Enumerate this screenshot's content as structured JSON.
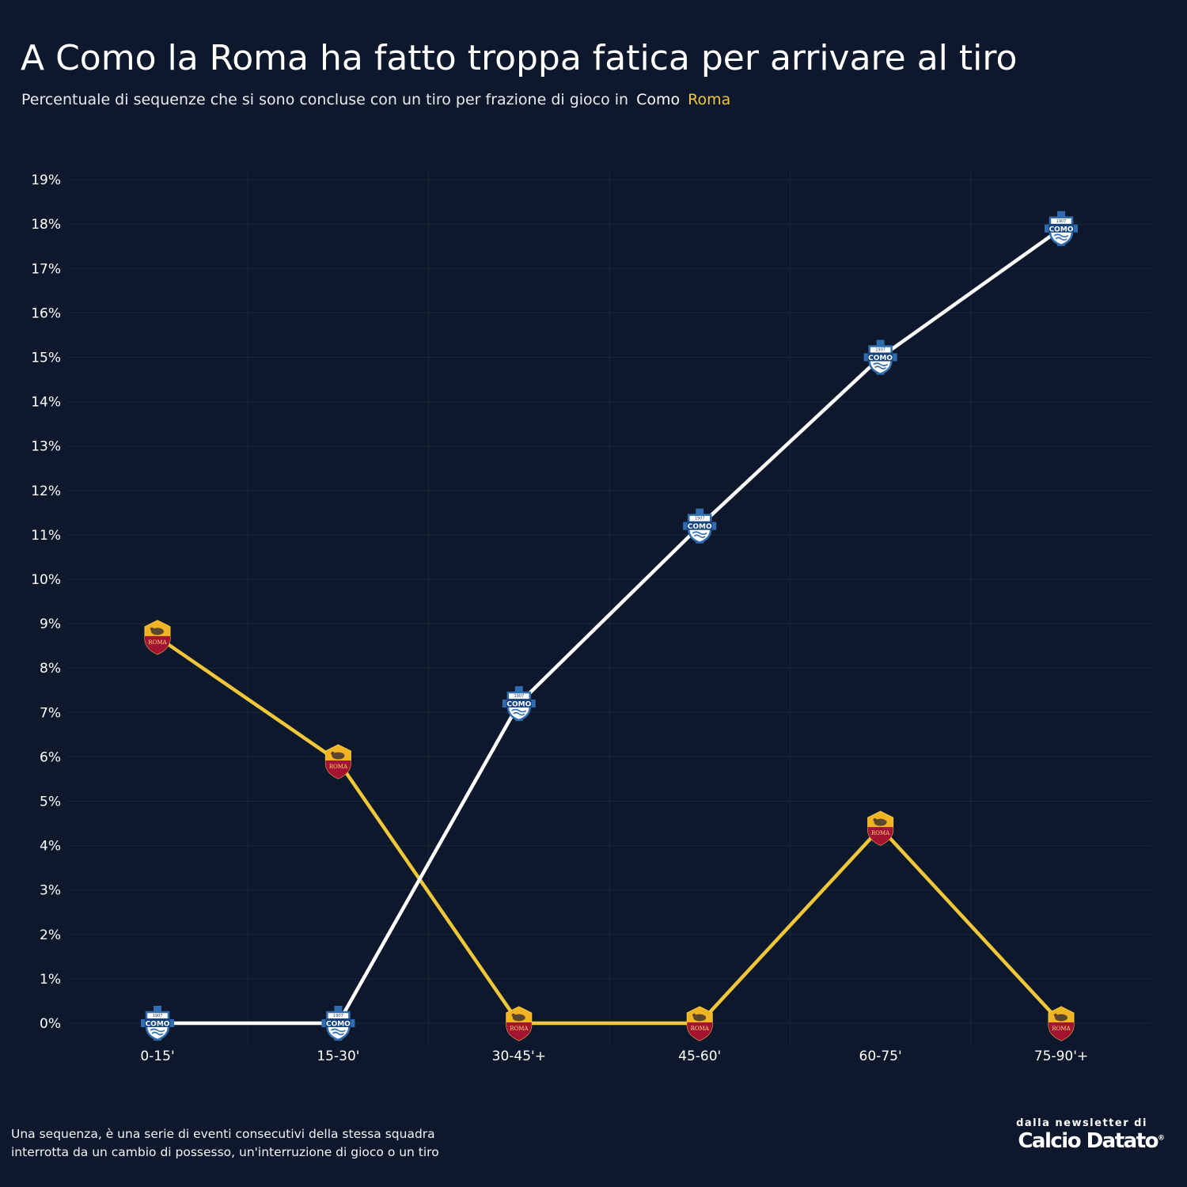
{
  "title": "A Como la Roma ha fatto troppa fatica per arrivare al tiro",
  "subtitle": {
    "text": "Percentuale di sequenze che si sono concluse con un tiro per frazione di gioco in",
    "legend_como": "Como",
    "legend_roma": "Roma"
  },
  "colors": {
    "background": "#0e182c",
    "como": "#ffffff",
    "roma": "#f0c63a",
    "grid": "#152a36"
  },
  "chart_data": {
    "type": "line",
    "categories": [
      "0-15'",
      "15-30'",
      "30-45'+",
      "45-60'",
      "60-75'",
      "75-90'+"
    ],
    "series": [
      {
        "name": "Como",
        "values": [
          0,
          0,
          7.2,
          11.2,
          15.0,
          17.9
        ],
        "marker": "como-crest-icon"
      },
      {
        "name": "Roma",
        "values": [
          8.7,
          5.9,
          0,
          0,
          4.4,
          0
        ],
        "marker": "roma-crest-icon"
      }
    ],
    "yticks": [
      "0%",
      "1%",
      "2%",
      "3%",
      "4%",
      "5%",
      "6%",
      "7%",
      "8%",
      "9%",
      "10%",
      "11%",
      "12%",
      "13%",
      "14%",
      "15%",
      "16%",
      "17%",
      "18%",
      "19%"
    ],
    "ylim": [
      0,
      19
    ],
    "grid": true
  },
  "footnote": {
    "line1": "Una sequenza, è una serie di eventi consecutivi della stessa squadra",
    "line2": "interrotta da un cambio di possesso, un'interruzione di gioco o un tiro"
  },
  "brand": {
    "pre": "dalla newsletter di",
    "name": "Calcio Datato",
    "mark": "®"
  }
}
